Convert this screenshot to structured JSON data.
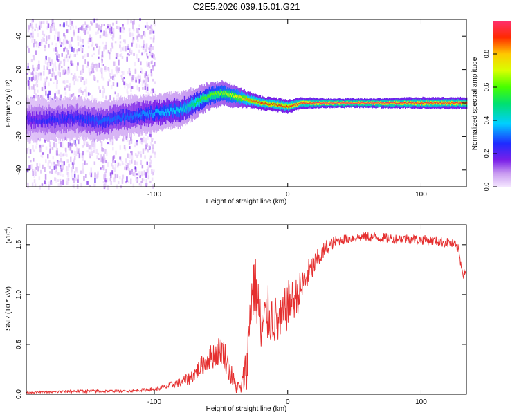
{
  "title": "C2E5.2026.039.15.01.G21",
  "chart_data": [
    {
      "type": "heatmap",
      "xlabel": "Height of straight line (km)",
      "ylabel": "Frequency (Hz)",
      "xlim": [
        -196,
        134
      ],
      "ylim": [
        -50,
        50
      ],
      "x_ticks": [
        -100,
        0,
        100
      ],
      "y_ticks": [
        -40,
        -20,
        0,
        20,
        40
      ],
      "colorbar": {
        "label": "Normalized spectral amplitude",
        "range": [
          0,
          1
        ],
        "ticks": [
          0.0,
          0.2,
          0.4,
          0.6,
          0.8
        ]
      },
      "ridge": {
        "x": [
          -196,
          -180,
          -160,
          -140,
          -120,
          -100,
          -80,
          -70,
          -60,
          -50,
          -40,
          -30,
          -20,
          -10,
          0,
          10,
          30,
          60,
          100,
          134
        ],
        "frequency": [
          -10,
          -10,
          -9,
          -11,
          -8,
          -6,
          -4,
          0,
          4,
          6,
          4,
          2,
          0,
          -1,
          -2,
          0,
          0,
          0,
          0,
          0
        ],
        "amplitude": [
          0.2,
          0.25,
          0.25,
          0.3,
          0.3,
          0.35,
          0.4,
          0.5,
          0.6,
          0.65,
          0.7,
          0.85,
          0.9,
          0.9,
          0.9,
          0.95,
          1.0,
          1.0,
          0.95,
          0.95
        ]
      },
      "noise_region": {
        "x_from": -196,
        "x_to": -100,
        "frequency_range": [
          -50,
          50
        ]
      }
    },
    {
      "type": "line",
      "xlabel": "Height of straight line (km)",
      "ylabel": "SNR (10 * v/v)",
      "y_multiplier_label": "(x10",
      "y_multiplier_exp": "4",
      "xlim": [
        -196,
        134
      ],
      "ylim": [
        0,
        1.7
      ],
      "x_ticks": [
        -100,
        0,
        100
      ],
      "y_ticks": [
        0.0,
        0.5,
        1.0,
        1.5
      ],
      "color": "#e53030",
      "series": [
        {
          "x": [
            -196,
            -180,
            -160,
            -140,
            -120,
            -100,
            -90,
            -85,
            -80,
            -75,
            -70,
            -65,
            -60,
            -55,
            -50,
            -48,
            -45,
            -40,
            -35,
            -30,
            -28,
            -25,
            -22,
            -20,
            -18,
            -15,
            -10,
            -5,
            0,
            5,
            10,
            15,
            20,
            25,
            30,
            35,
            40,
            50,
            60,
            70,
            80,
            90,
            100,
            110,
            120,
            125,
            128,
            130,
            132,
            134
          ],
          "values": [
            0.02,
            0.02,
            0.03,
            0.03,
            0.03,
            0.05,
            0.08,
            0.1,
            0.12,
            0.15,
            0.2,
            0.28,
            0.35,
            0.4,
            0.45,
            0.42,
            0.3,
            0.1,
            0.05,
            0.35,
            0.9,
            1.1,
            0.9,
            0.6,
            0.7,
            0.8,
            0.75,
            0.7,
            0.9,
            0.95,
            1.05,
            1.2,
            1.3,
            1.4,
            1.48,
            1.53,
            1.55,
            1.57,
            1.58,
            1.57,
            1.56,
            1.56,
            1.55,
            1.54,
            1.52,
            1.5,
            1.45,
            1.3,
            1.2,
            1.25
          ],
          "jitter": [
            0.01,
            0.01,
            0.015,
            0.015,
            0.01,
            0.02,
            0.03,
            0.04,
            0.05,
            0.06,
            0.08,
            0.1,
            0.12,
            0.14,
            0.15,
            0.15,
            0.15,
            0.1,
            0.05,
            0.3,
            0.35,
            0.35,
            0.35,
            0.3,
            0.3,
            0.3,
            0.25,
            0.25,
            0.25,
            0.2,
            0.2,
            0.15,
            0.12,
            0.1,
            0.08,
            0.06,
            0.05,
            0.05,
            0.05,
            0.05,
            0.05,
            0.05,
            0.05,
            0.05,
            0.05,
            0.05,
            0.05,
            0.05,
            0.05,
            0.05
          ]
        }
      ]
    }
  ]
}
